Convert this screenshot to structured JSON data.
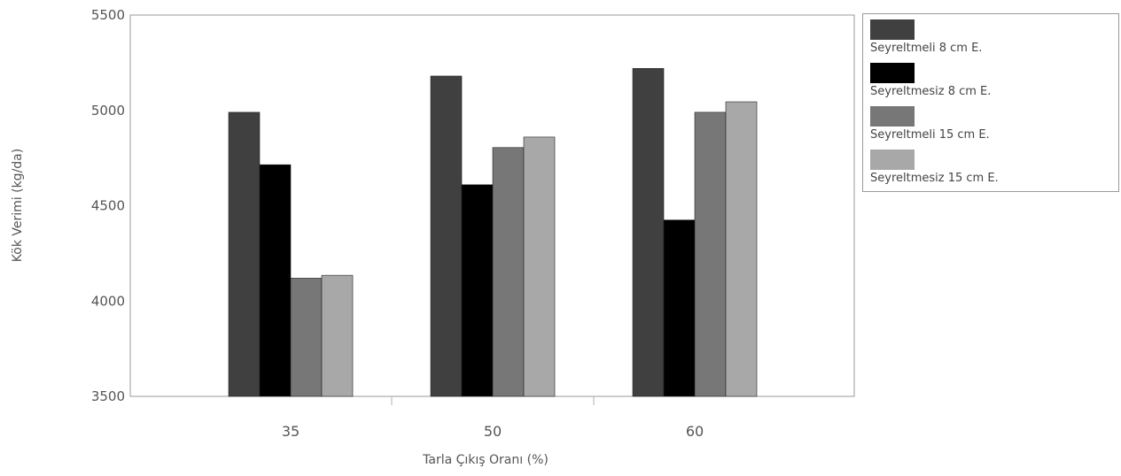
{
  "chart_data": {
    "type": "bar",
    "categories": [
      "35",
      "50",
      "60"
    ],
    "series": [
      {
        "name": "Seyreltmeli 8 cm E.",
        "values": [
          4990,
          5180,
          5220
        ],
        "color": "#404040"
      },
      {
        "name": "Seyreltmesiz 8 cm E.",
        "values": [
          4715,
          4610,
          4425
        ],
        "color": "#000000"
      },
      {
        "name": "Seyreltmeli 15 cm E.",
        "values": [
          4120,
          4805,
          4990
        ],
        "color": "#777777"
      },
      {
        "name": "Seyreltmesiz 15 cm E.",
        "values": [
          4135,
          4860,
          5045
        ],
        "color": "#a8a8a8"
      }
    ],
    "title": "",
    "xlabel": "Tarla Çıkış Oranı (%)",
    "ylabel": "Kök Verimi (kg/da)",
    "ylim": [
      3500,
      5500
    ],
    "yticks": [
      "5500",
      "5000",
      "4500",
      "4000",
      "3500"
    ],
    "grid": false,
    "legend_position": "right"
  }
}
